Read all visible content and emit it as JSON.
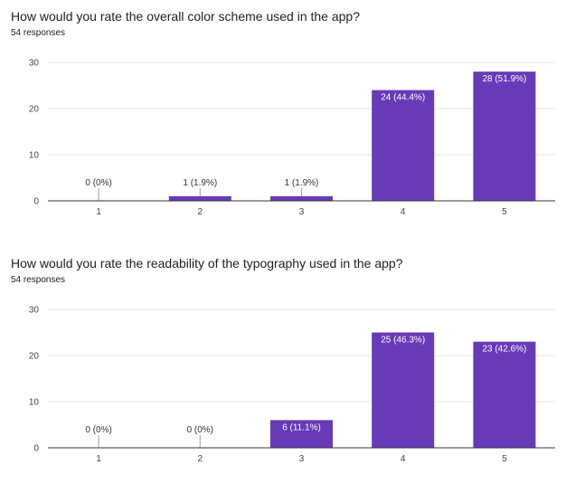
{
  "accent_color": "#673ab7",
  "charts": [
    {
      "title": "How would you rate the overall color scheme used in the app?",
      "responses": "54 responses"
    },
    {
      "title": "How would you rate the readability of the typography used in the app?",
      "responses": "54 responses"
    }
  ],
  "chart_data": [
    {
      "type": "bar",
      "title": "How would you rate the overall color scheme used in the app?",
      "subtitle": "54 responses",
      "categories": [
        "1",
        "2",
        "3",
        "4",
        "5"
      ],
      "values": [
        0,
        1,
        1,
        24,
        28
      ],
      "data_labels": [
        "0 (0%)",
        "1 (1.9%)",
        "1 (1.9%)",
        "24 (44.4%)",
        "28 (51.9%)"
      ],
      "yticks": [
        0,
        10,
        20,
        30
      ],
      "ylim": [
        0,
        30
      ],
      "xlabel": "",
      "ylabel": "",
      "grid": true,
      "color": "#673ab7"
    },
    {
      "type": "bar",
      "title": "How would you rate the readability of the typography used in the app?",
      "subtitle": "54 responses",
      "categories": [
        "1",
        "2",
        "3",
        "4",
        "5"
      ],
      "values": [
        0,
        0,
        6,
        25,
        23
      ],
      "data_labels": [
        "0 (0%)",
        "0 (0%)",
        "6 (11.1%)",
        "25 (46.3%)",
        "23 (42.6%)"
      ],
      "yticks": [
        0,
        10,
        20,
        30
      ],
      "ylim": [
        0,
        30
      ],
      "xlabel": "",
      "ylabel": "",
      "grid": true,
      "color": "#673ab7"
    }
  ]
}
